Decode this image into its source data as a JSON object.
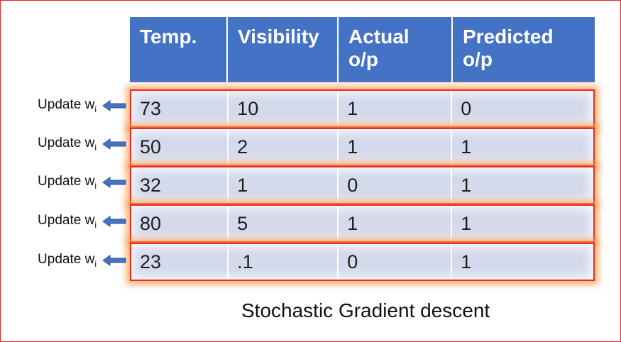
{
  "table": {
    "headers": [
      {
        "line1": "Temp.",
        "line2": ""
      },
      {
        "line1": "Visibility",
        "line2": ""
      },
      {
        "line1": "Actual",
        "line2": "o/p"
      },
      {
        "line1": "Predicted",
        "line2": "o/p"
      }
    ],
    "rows": [
      [
        "73",
        "10",
        "1",
        "0"
      ],
      [
        "50",
        "2",
        "1",
        "1"
      ],
      [
        "32",
        "1",
        "0",
        "1"
      ],
      [
        "80",
        "5",
        "1",
        "1"
      ],
      [
        "23",
        ".1",
        "0",
        "1"
      ]
    ]
  },
  "update_labels": [
    {
      "text": "Update w",
      "subscript": "i"
    },
    {
      "text": "Update w",
      "subscript": "i"
    },
    {
      "text": "Update w",
      "subscript": "i"
    },
    {
      "text": "Update w",
      "subscript": "i"
    },
    {
      "text": "Update w",
      "subscript": "i"
    }
  ],
  "caption": "Stochastic Gradient descent",
  "colors": {
    "header_bg": "#4472c4",
    "row_bg": "#d4daec",
    "row_border": "#ee2a1e",
    "row_glow": "#f79646",
    "arrow": "#4472c4",
    "frame_border": "#e0262b"
  },
  "icons": {
    "update_arrow": "left-arrow-icon"
  }
}
